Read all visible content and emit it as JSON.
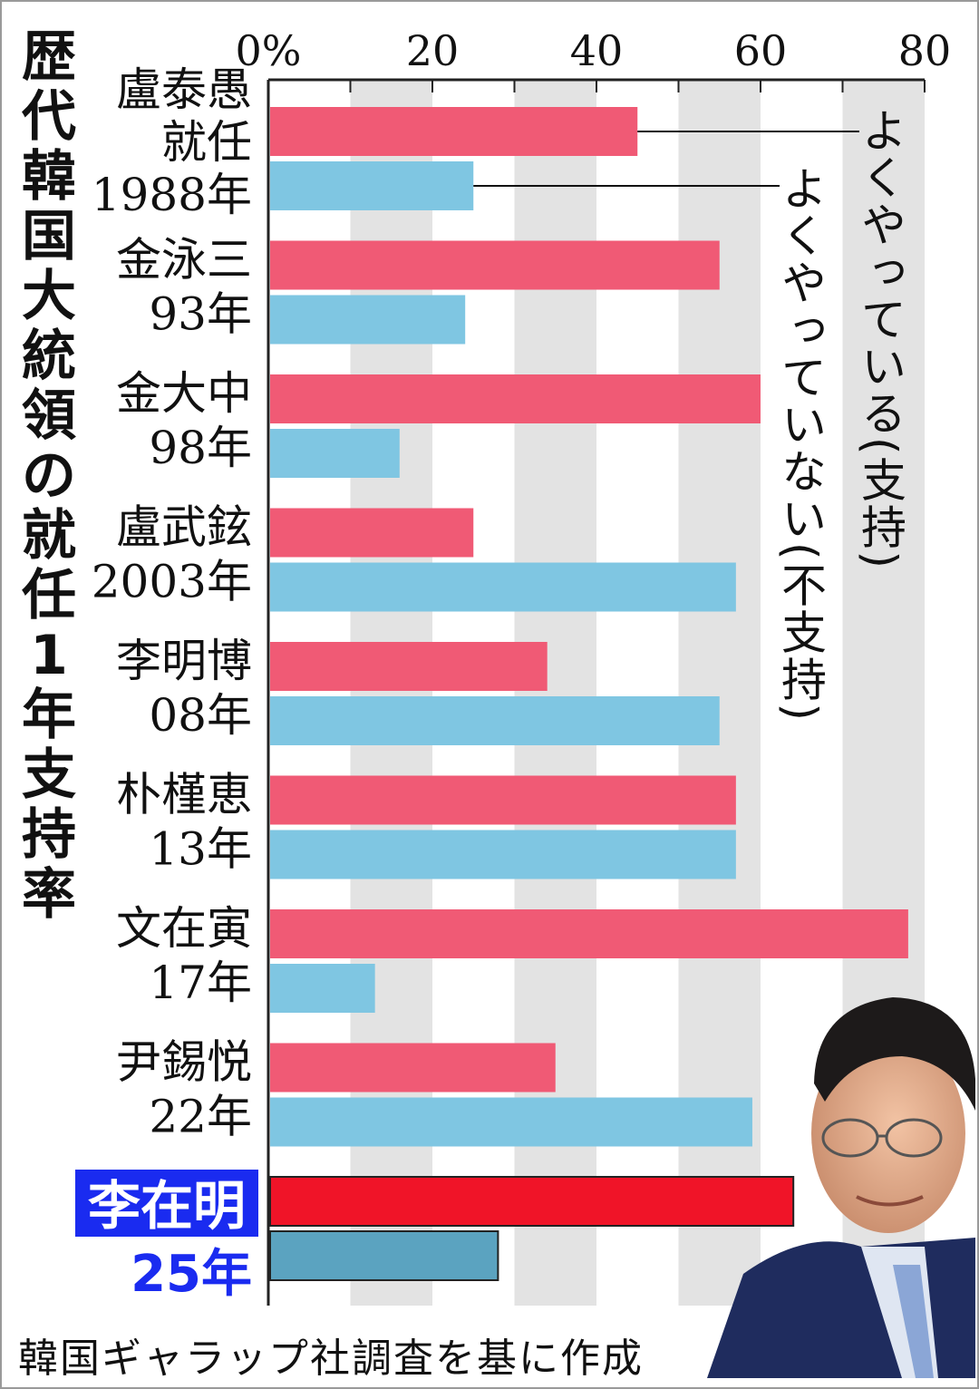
{
  "title": "歴代韓国大統領の就任1年支持率",
  "source": "韓国ギャラップ社調査を基に作成",
  "legend": {
    "support": "よくやっている(支持)",
    "not_support": "よくやっていない(不支持)"
  },
  "colors": {
    "support": "#f05a75",
    "not_support": "#7fc6e2",
    "current_support": "#f01428",
    "current_not_support": "#5ba3c0",
    "current_name_bg": "#1a2bf0",
    "current_year_text": "#1a2bf0",
    "grid_band": "#e3e3e3"
  },
  "chart_data": {
    "type": "bar",
    "orientation": "horizontal",
    "xlim": [
      0,
      80
    ],
    "ticks": [
      "0%",
      "20",
      "40",
      "60",
      "80"
    ],
    "tick_values": [
      0,
      20,
      40,
      60,
      80
    ],
    "grid": "alternating bands every 10",
    "categories": [
      {
        "name": "盧泰愚",
        "sub": "就任",
        "year": "1988年"
      },
      {
        "name": "金泳三",
        "sub": "",
        "year": "93年"
      },
      {
        "name": "金大中",
        "sub": "",
        "year": "98年"
      },
      {
        "name": "盧武鉉",
        "sub": "",
        "year": "2003年"
      },
      {
        "name": "李明博",
        "sub": "",
        "year": "08年"
      },
      {
        "name": "朴槿恵",
        "sub": "",
        "year": "13年"
      },
      {
        "name": "文在寅",
        "sub": "",
        "year": "17年"
      },
      {
        "name": "尹錫悦",
        "sub": "",
        "year": "22年"
      },
      {
        "name": "李在明",
        "sub": "",
        "year": "25年",
        "highlight": true
      }
    ],
    "series": [
      {
        "name": "よくやっている(支持)",
        "values": [
          45,
          55,
          60,
          25,
          34,
          57,
          78,
          35,
          64
        ]
      },
      {
        "name": "よくやっていない(不支持)",
        "values": [
          25,
          24,
          16,
          57,
          55,
          57,
          13,
          59,
          28
        ]
      }
    ]
  }
}
